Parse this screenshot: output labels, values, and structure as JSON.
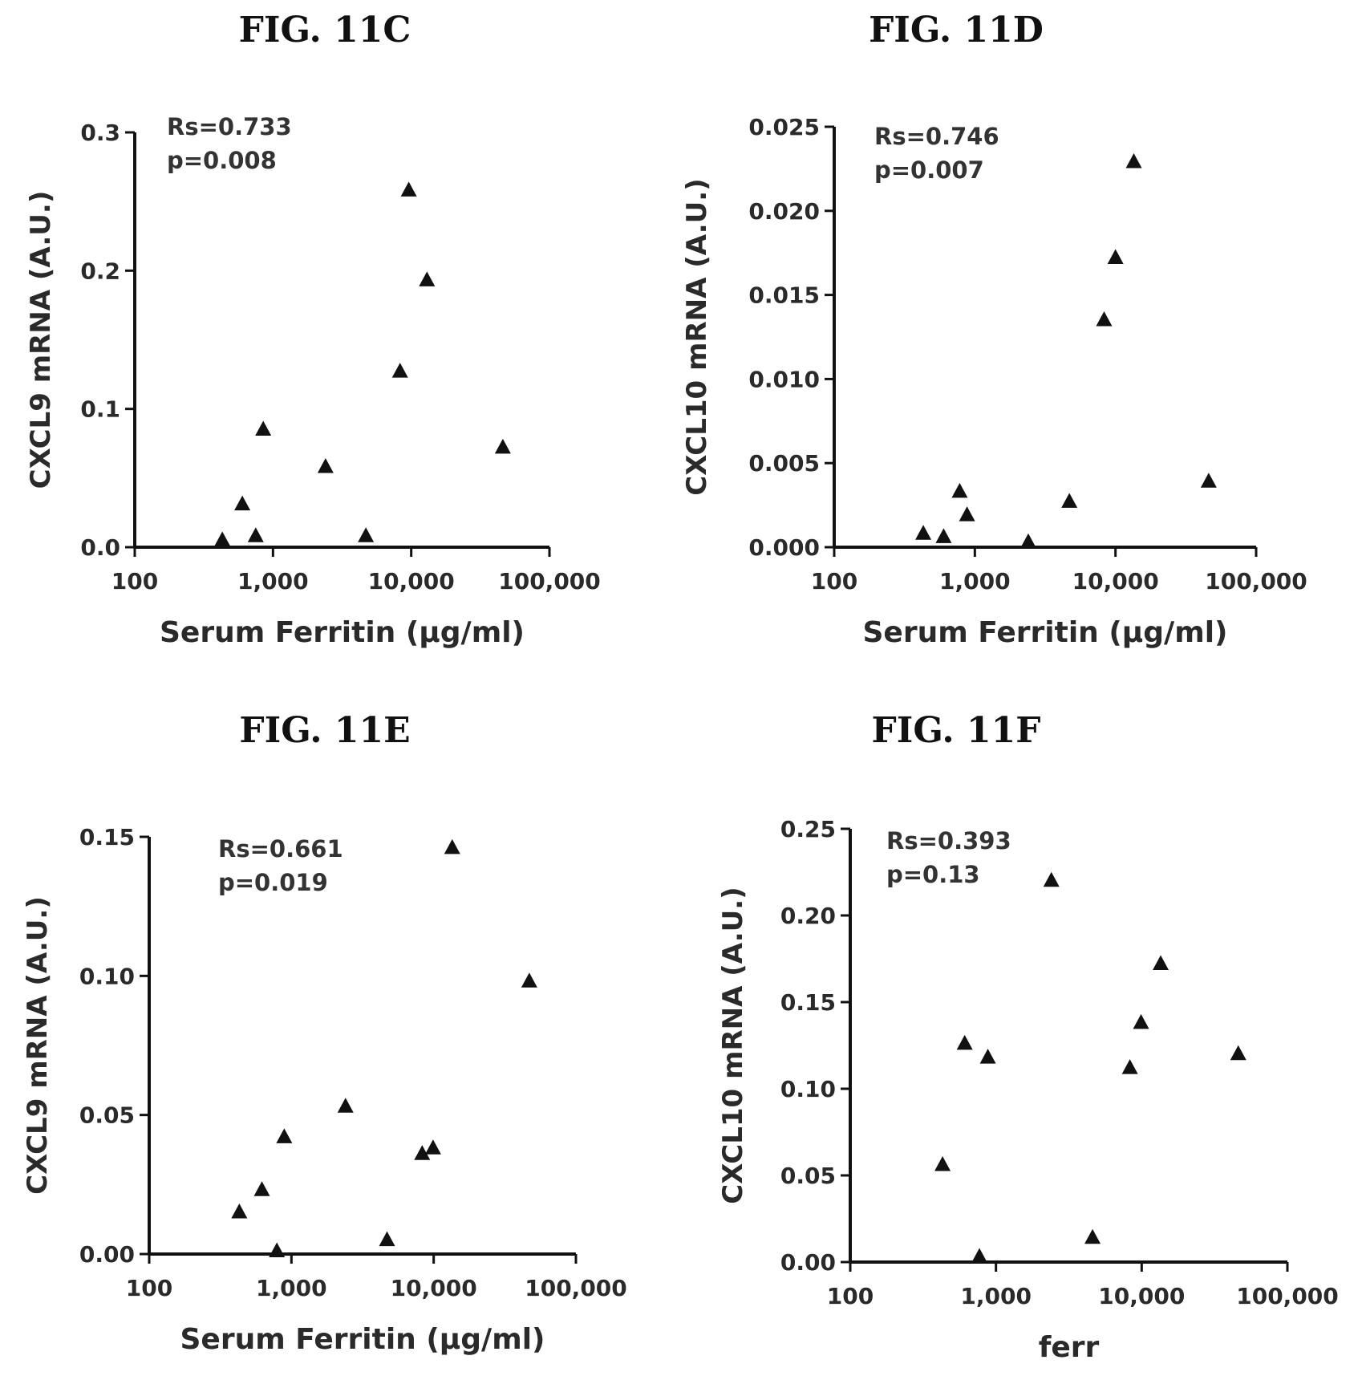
{
  "chart_data": [
    {
      "type": "scatter",
      "title": "FIG. 11C",
      "xlabel": "Serum Ferritin (µg/ml)",
      "ylabel": "CXCL9 mRNA (A.U.)",
      "x_scale": "log",
      "xlim": [
        100,
        100000
      ],
      "ylim": [
        0,
        0.3
      ],
      "x_ticks": [
        "100",
        "1,000",
        "10,000",
        "100,000"
      ],
      "y_ticks": [
        "0.0",
        "0.1",
        "0.2",
        "0.3"
      ],
      "annotation": [
        "Rs=0.733",
        "p=0.008"
      ],
      "marker": "triangle",
      "grid": false,
      "x": [
        430,
        600,
        750,
        850,
        2400,
        4700,
        8300,
        9600,
        13000,
        46000
      ],
      "y": [
        0.005,
        0.031,
        0.008,
        0.085,
        0.058,
        0.008,
        0.127,
        0.258,
        0.193,
        0.072
      ]
    },
    {
      "type": "scatter",
      "title": "FIG. 11D",
      "xlabel": "Serum Ferritin (µg/ml)",
      "ylabel": "CXCL10 mRNA (A.U.)",
      "x_scale": "log",
      "xlim": [
        100,
        100000
      ],
      "ylim": [
        0,
        0.025
      ],
      "x_ticks": [
        "100",
        "1,000",
        "10,000",
        "100,000"
      ],
      "y_ticks": [
        "0.000",
        "0.005",
        "0.010",
        "0.015",
        "0.020",
        "0.025"
      ],
      "annotation": [
        "Rs=0.746",
        "p=0.007"
      ],
      "marker": "triangle",
      "grid": false,
      "x": [
        430,
        600,
        780,
        880,
        2400,
        4700,
        8300,
        10000,
        13500,
        46000
      ],
      "y": [
        0.0008,
        0.0006,
        0.0033,
        0.0019,
        0.0003,
        0.0027,
        0.0135,
        0.0172,
        0.0229,
        0.0039
      ]
    },
    {
      "type": "scatter",
      "title": "FIG. 11E",
      "xlabel": "Serum Ferritin (µg/ml)",
      "ylabel": "CXCL9 mRNA (A.U.)",
      "x_scale": "log",
      "xlim": [
        100,
        100000
      ],
      "ylim": [
        0,
        0.15
      ],
      "x_ticks": [
        "100",
        "1,000",
        "10,000",
        "100,000"
      ],
      "y_ticks": [
        "0.00",
        "0.05",
        "0.10",
        "0.15"
      ],
      "annotation": [
        "Rs=0.661",
        "p=0.019"
      ],
      "marker": "triangle",
      "grid": false,
      "x": [
        430,
        620,
        790,
        890,
        2400,
        4700,
        8300,
        9900,
        13500,
        47000
      ],
      "y": [
        0.015,
        0.023,
        0.001,
        0.042,
        0.053,
        0.005,
        0.036,
        0.038,
        0.146,
        0.098
      ]
    },
    {
      "type": "scatter",
      "title": "FIG. 11F",
      "xlabel": "ferr",
      "ylabel": "CXCL10 mRNA (A.U.)",
      "x_scale": "log",
      "xlim": [
        100,
        100000
      ],
      "ylim": [
        0,
        0.25
      ],
      "x_ticks": [
        "100",
        "1,000",
        "10,000",
        "100,000"
      ],
      "y_ticks": [
        "0.00",
        "0.05",
        "0.10",
        "0.15",
        "0.20",
        "0.25"
      ],
      "annotation": [
        "Rs=0.393",
        "p=0.13"
      ],
      "marker": "triangle",
      "grid": false,
      "x": [
        430,
        610,
        770,
        880,
        2400,
        4600,
        8300,
        9900,
        13500,
        46000
      ],
      "y": [
        0.056,
        0.126,
        0.003,
        0.118,
        0.22,
        0.014,
        0.112,
        0.138,
        0.172,
        0.12
      ]
    }
  ]
}
